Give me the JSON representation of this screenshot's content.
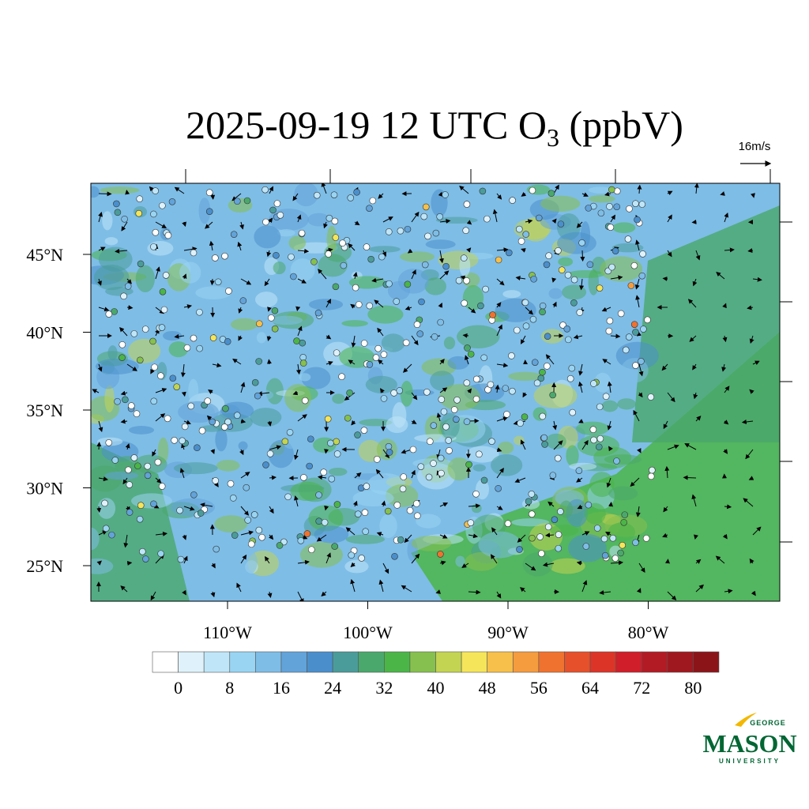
{
  "title": {
    "text": "2025-09-19 12 UTC O",
    "subscript": "3",
    "suffix": " (ppbV)"
  },
  "vector_key": "16m/s",
  "lat_labels": [
    "45°N",
    "40°N",
    "35°N",
    "30°N",
    "25°N"
  ],
  "lon_labels": [
    "110°W",
    "100°W",
    "90°W",
    "80°W"
  ],
  "colorbar": {
    "colors": [
      "#ffffff",
      "#dff2fb",
      "#bfe6f8",
      "#99d4f2",
      "#7ebde6",
      "#62a3d9",
      "#4a8fcc",
      "#4a9c9a",
      "#4aa86c",
      "#4bb548",
      "#86c04e",
      "#c2d452",
      "#f5e55a",
      "#f7c04a",
      "#f59c3f",
      "#f0722f",
      "#e6502b",
      "#dc3427",
      "#d01e2a",
      "#b31b24",
      "#a0181f",
      "#8b1419"
    ],
    "step": 4,
    "ticks": [
      0,
      8,
      16,
      24,
      32,
      40,
      48,
      56,
      64,
      72,
      80
    ]
  },
  "logo": {
    "top": "GEORGE",
    "name": "MASON",
    "bottom": "UNIVERSITY"
  }
}
